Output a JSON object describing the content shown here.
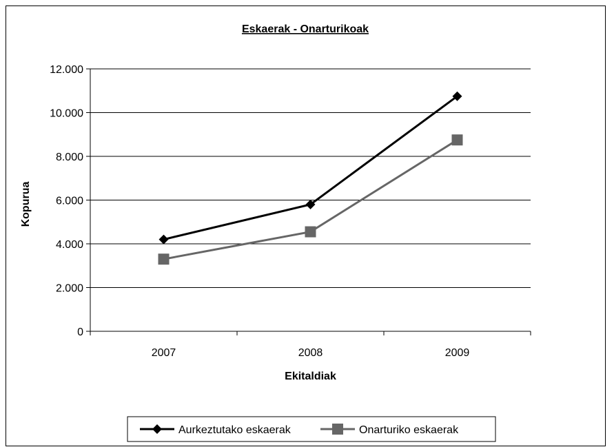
{
  "chart_data": {
    "type": "line",
    "title": "Eskaerak - Onarturikoak",
    "xlabel": "Ekitaldiak",
    "ylabel": "Kopurua",
    "categories": [
      "2007",
      "2008",
      "2009"
    ],
    "ylim": [
      0,
      12000
    ],
    "y_ticks": [
      0,
      2000,
      4000,
      6000,
      8000,
      10000,
      12000
    ],
    "y_tick_labels": [
      "0",
      "2.000",
      "4.000",
      "6.000",
      "8.000",
      "10.000",
      "12.000"
    ],
    "grid": "horizontal",
    "legend_position": "bottom",
    "series": [
      {
        "name": "Aurkeztutako eskaerak",
        "values": [
          4200,
          5800,
          10750
        ],
        "color": "#000000",
        "marker": "diamond"
      },
      {
        "name": "Onarturiko eskaerak",
        "values": [
          3300,
          4550,
          8750
        ],
        "color": "#666666",
        "marker": "square"
      }
    ]
  }
}
